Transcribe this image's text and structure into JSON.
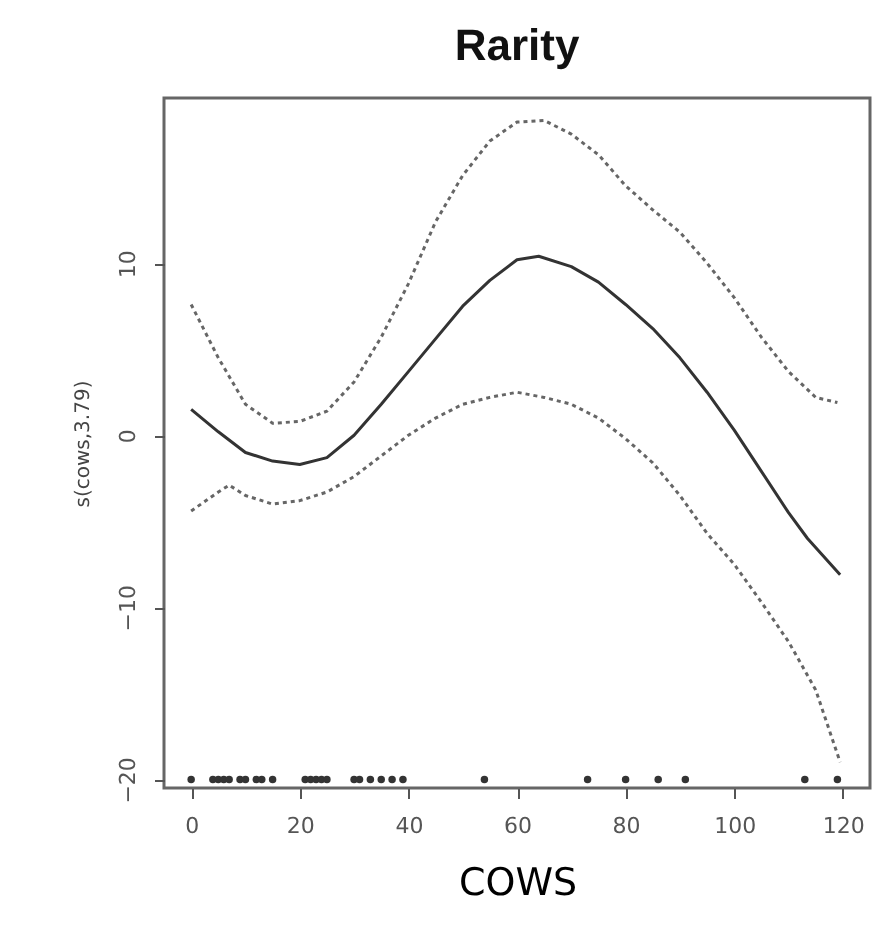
{
  "chart_data": {
    "type": "line",
    "title": "Rarity",
    "xlabel": "COWS",
    "ylabel": "s(cows,3.79)",
    "xlim": [
      -5,
      125
    ],
    "ylim": [
      -20.5,
      19.6
    ],
    "xticks": [
      0,
      20,
      40,
      60,
      80,
      100,
      120
    ],
    "yticks": [
      -20,
      -10,
      0,
      10
    ],
    "series": [
      {
        "line_style": "solid",
        "color": "#333333",
        "x": [
          0,
          5,
          10,
          15,
          20,
          25,
          30,
          35,
          40,
          45,
          50,
          55,
          60,
          64,
          70,
          75,
          80,
          85,
          90,
          95,
          100,
          105,
          110,
          113.5,
          119.5
        ],
        "values": [
          1.5,
          0.2,
          -1.0,
          -1.5,
          -1.7,
          -1.3,
          0,
          1.8,
          3.7,
          5.6,
          7.5,
          9.0,
          10.2,
          10.4,
          9.8,
          8.9,
          7.6,
          6.2,
          4.5,
          2.5,
          0.3,
          -2.1,
          -4.5,
          -6.0,
          -8.1
        ]
      },
      {
        "line_style": "dotted",
        "color": "#666666",
        "x": [
          0,
          5,
          10,
          15,
          20,
          25,
          30,
          35,
          40,
          45,
          50,
          55,
          60,
          65,
          70,
          75,
          80,
          85,
          90,
          95,
          100,
          105,
          110,
          115,
          119
        ],
        "values": [
          7.6,
          4.5,
          1.8,
          0.7,
          0.8,
          1.4,
          3.1,
          5.7,
          8.8,
          12.4,
          15.1,
          17.1,
          18.2,
          18.3,
          17.5,
          16.3,
          14.5,
          13.1,
          11.8,
          10.0,
          8.0,
          5.7,
          3.7,
          2.2,
          1.9
        ]
      },
      {
        "line_style": "dotted",
        "color": "#666666",
        "x": [
          0,
          5,
          7,
          10,
          15,
          20,
          25,
          30,
          35,
          40,
          45,
          50,
          55,
          60,
          65,
          70,
          75,
          80,
          85,
          90,
          95,
          100,
          105,
          110,
          115,
          119.5
        ],
        "values": [
          -4.4,
          -3.3,
          -2.9,
          -3.5,
          -4.0,
          -3.8,
          -3.3,
          -2.4,
          -1.2,
          0,
          1.0,
          1.8,
          2.2,
          2.5,
          2.2,
          1.8,
          1.0,
          -0.2,
          -1.6,
          -3.5,
          -5.7,
          -7.5,
          -9.7,
          -12.0,
          -14.8,
          -19.0
        ]
      },
      {
        "type": "scatter",
        "color": "#333333",
        "x": [
          0,
          4,
          5,
          6,
          7,
          9,
          10,
          12,
          13,
          15,
          21,
          22,
          23,
          24,
          25,
          30,
          31,
          33,
          35,
          37,
          39,
          54,
          73,
          80,
          86,
          91,
          113,
          119
        ],
        "values": [
          -20,
          -20,
          -20,
          -20,
          -20,
          -20,
          -20,
          -20,
          -20,
          -20,
          -20,
          -20,
          -20,
          -20,
          -20,
          -20,
          -20,
          -20,
          -20,
          -20,
          -20,
          -20,
          -20,
          -20,
          -20,
          -20,
          -20,
          -20
        ]
      }
    ]
  }
}
